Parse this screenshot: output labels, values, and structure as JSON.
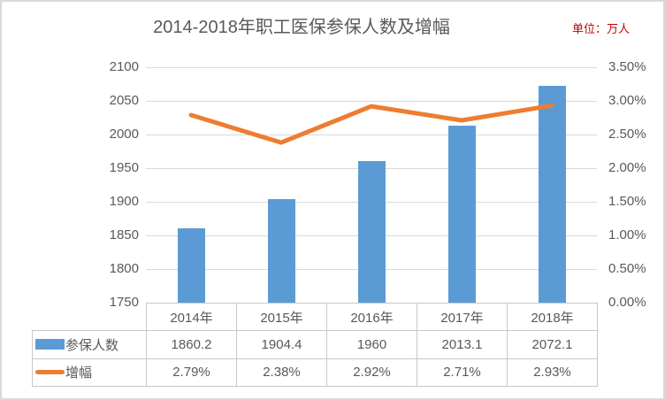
{
  "header": {
    "title": "2014-2018年职工医保参保人数及增幅",
    "unit_label": "单位：万人"
  },
  "colors": {
    "bar": "#5B9BD5",
    "line": "#ED7D31",
    "gridline": "#D9D9D9",
    "axis_text": "#595959",
    "title_text": "#595959",
    "unit_text": "#C00000",
    "table_border": "#C8C8C8"
  },
  "chart_data": {
    "type": "bar+line",
    "title": "2014-2018年职工医保参保人数及增幅",
    "unit": "单位：万人",
    "categories": [
      "2014年",
      "2015年",
      "2016年",
      "2017年",
      "2018年"
    ],
    "series": [
      {
        "name": "参保人数",
        "type": "bar",
        "axis": "left",
        "values": [
          1860.2,
          1904.4,
          1960,
          2013.1,
          2072.1
        ],
        "color": "#5B9BD5"
      },
      {
        "name": "增幅",
        "type": "line",
        "axis": "right",
        "values": [
          2.79,
          2.38,
          2.92,
          2.71,
          2.93
        ],
        "color": "#ED7D31"
      }
    ],
    "left_axis": {
      "min": 1750,
      "max": 2100,
      "step": 50,
      "ticks": [
        "2100",
        "2050",
        "2000",
        "1950",
        "1900",
        "1850",
        "1800",
        "1750"
      ]
    },
    "right_axis": {
      "min": 0,
      "max": 3.5,
      "step": 0.5,
      "ticks": [
        "3.50%",
        "3.00%",
        "2.50%",
        "2.00%",
        "1.50%",
        "1.00%",
        "0.50%",
        "0.00%"
      ]
    },
    "grid": true,
    "legend_position": "data-table"
  },
  "data_table": {
    "header_cells": [
      "2014年",
      "2015年",
      "2016年",
      "2017年",
      "2018年"
    ],
    "rows": [
      {
        "label": "参保人数",
        "swatch": "bar",
        "cells": [
          "1860.2",
          "1904.4",
          "1960",
          "2013.1",
          "2072.1"
        ]
      },
      {
        "label": "增幅",
        "swatch": "line",
        "cells": [
          "2.79%",
          "2.38%",
          "2.92%",
          "2.71%",
          "2.93%"
        ]
      }
    ]
  }
}
